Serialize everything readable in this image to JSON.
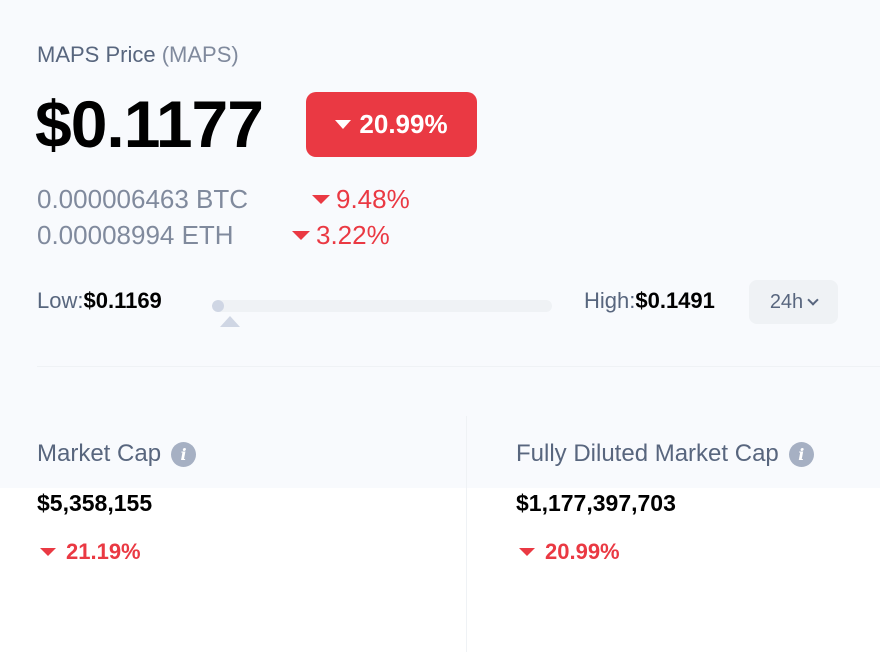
{
  "header": {
    "name": "MAPS Price",
    "symbol": "(MAPS)"
  },
  "price": {
    "value": "$0.1177",
    "change_24h": "20.99%",
    "change_direction": "down",
    "accent_down_color": "#ea3943"
  },
  "conversions": [
    {
      "value": "0.000006463 BTC",
      "change": "9.48%",
      "direction": "down"
    },
    {
      "value": "0.00008994 ETH",
      "change": "3.22%",
      "direction": "down"
    }
  ],
  "range": {
    "low_label": "Low:",
    "low_value": "$0.1169",
    "high_label": "High:",
    "high_value": "$0.1491",
    "position_fraction": 0.025,
    "period": "24h"
  },
  "stats": {
    "market_cap": {
      "label": "Market Cap",
      "value": "$5,358,155",
      "change": "21.19%",
      "icon": "info-icon"
    },
    "fully_diluted": {
      "label": "Fully Diluted Market Cap",
      "value": "$1,177,397,703",
      "change": "20.99%",
      "icon": "info-icon"
    }
  }
}
